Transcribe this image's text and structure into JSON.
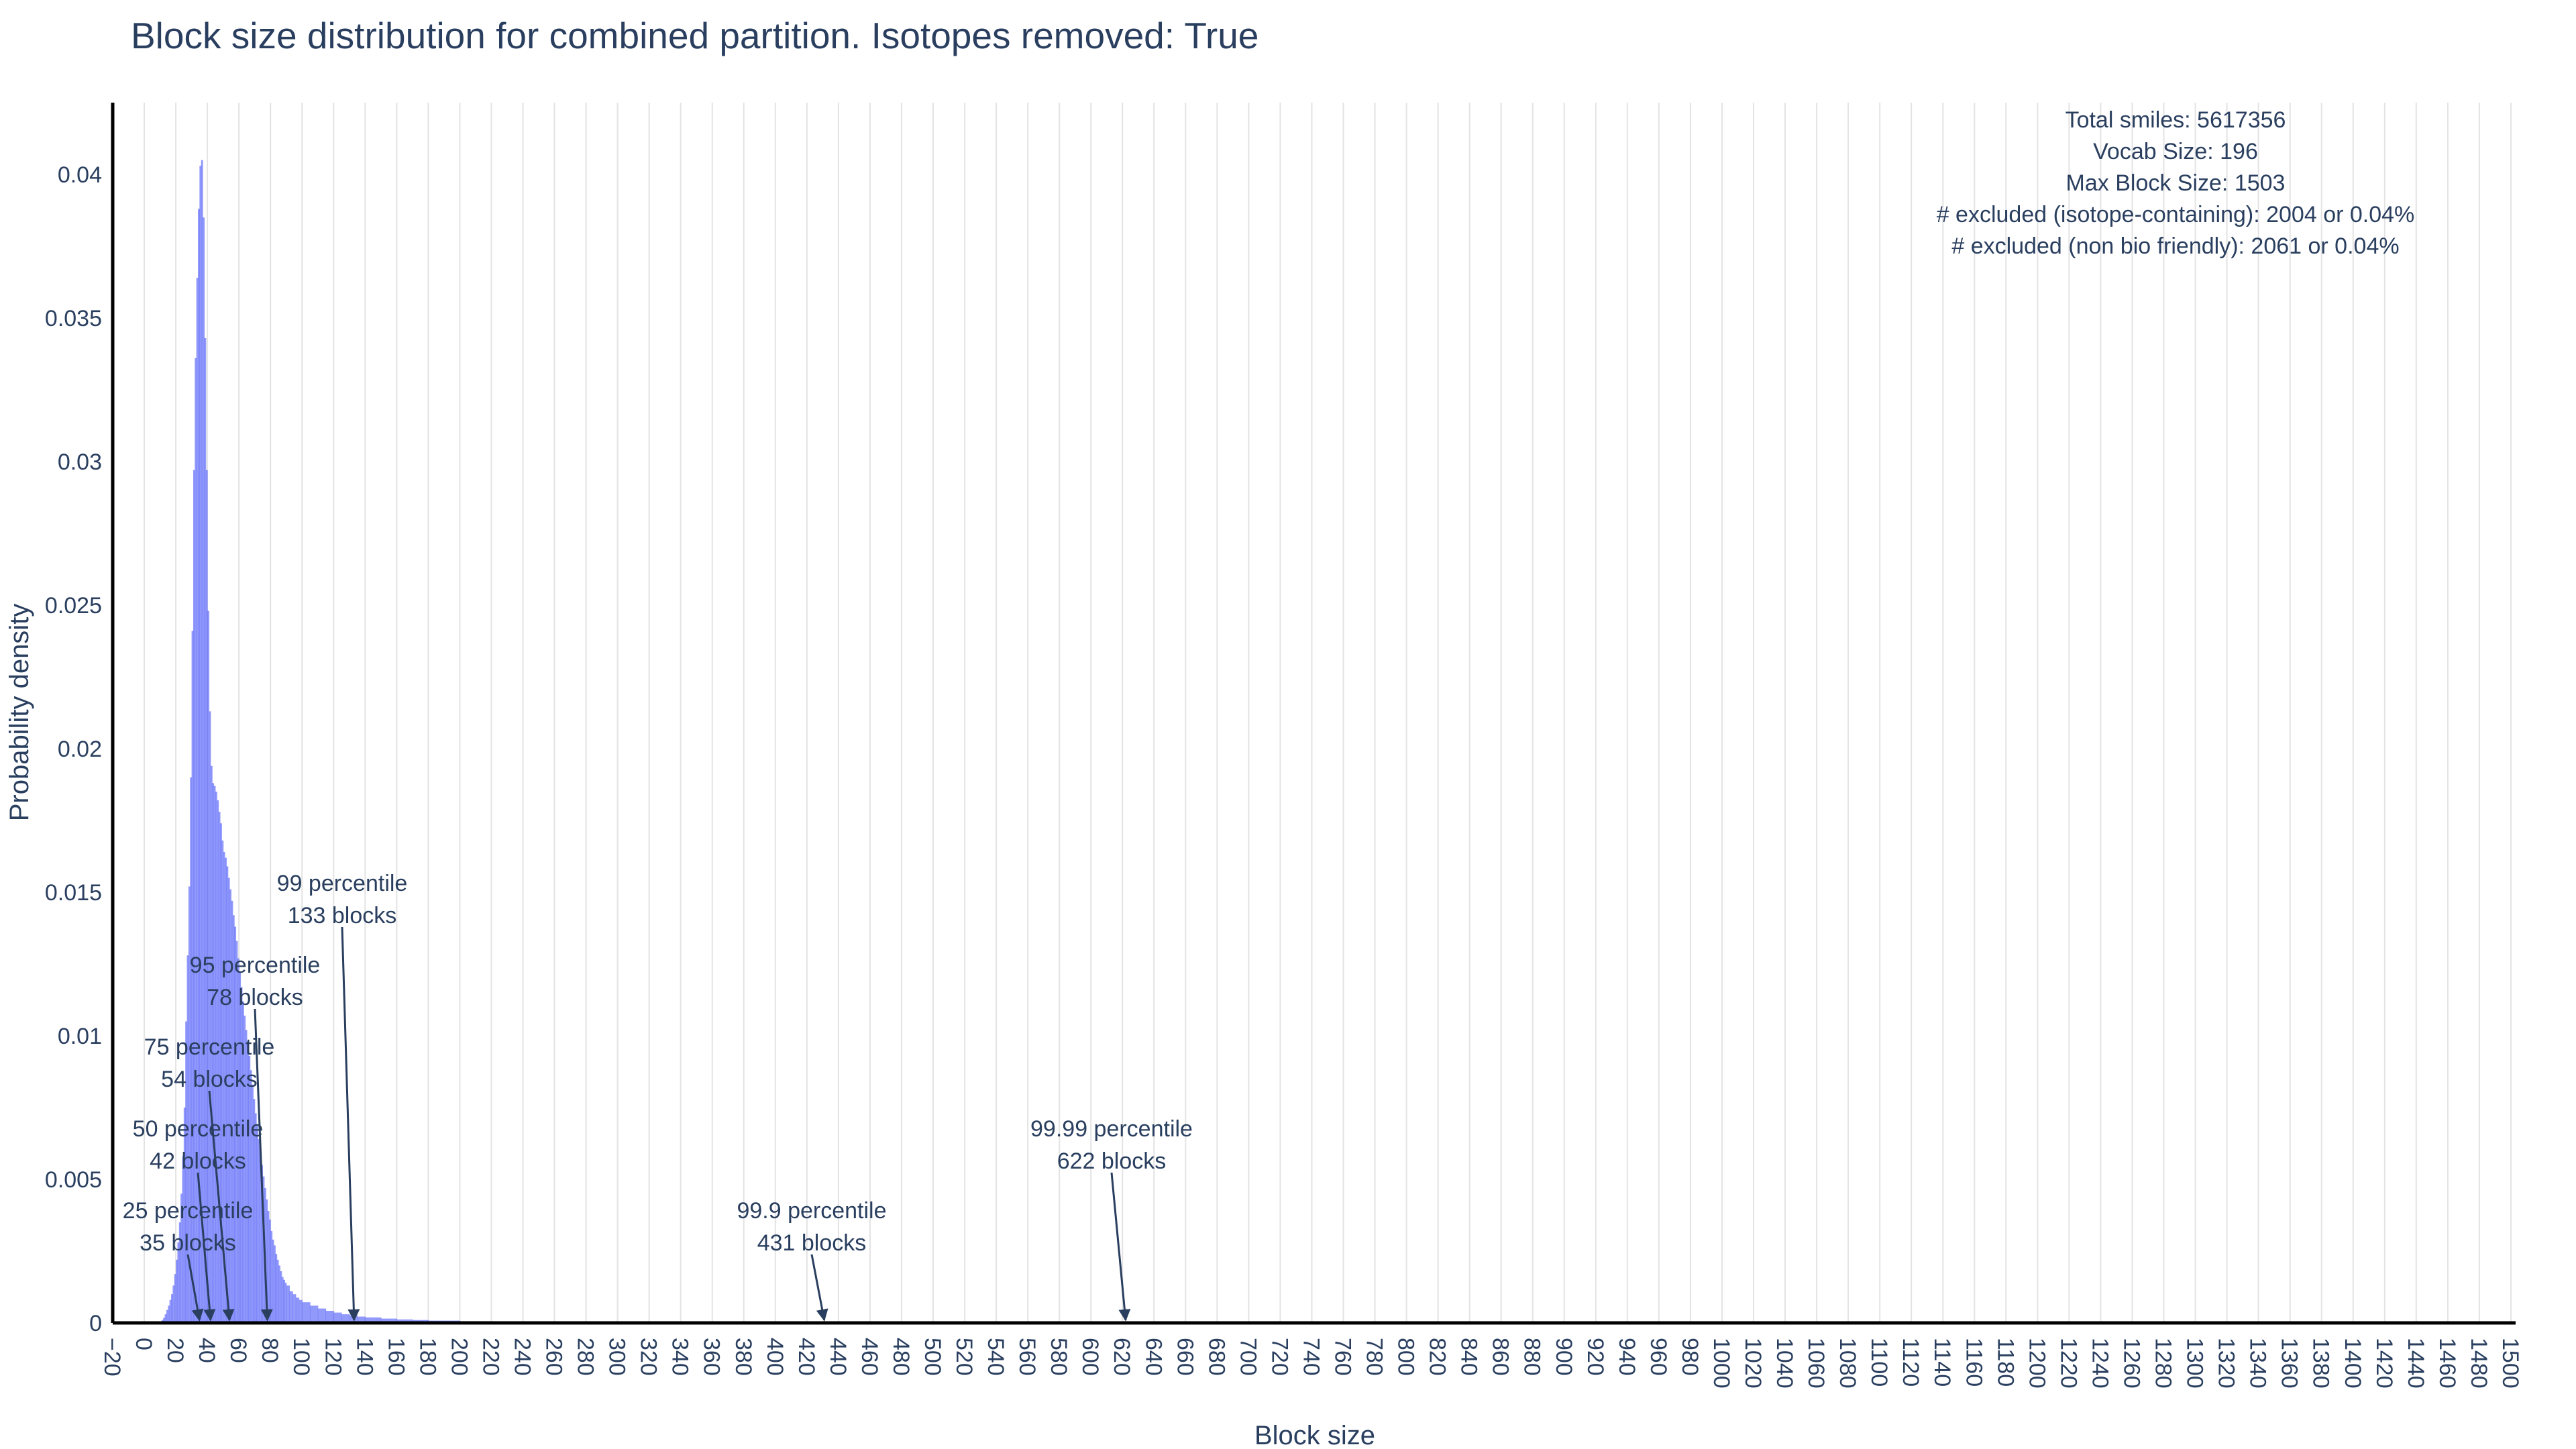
{
  "chart_data": {
    "type": "bar",
    "title": "Block size distribution for combined partition. Isotopes removed: True",
    "xlabel": "Block size",
    "ylabel": "Probability density",
    "xlim": [
      -20,
      1503
    ],
    "ylim": [
      0,
      0.0425
    ],
    "x_tick_step": 20,
    "y_ticks": [
      0,
      0.005,
      0.01,
      0.015,
      0.02,
      0.025,
      0.03,
      0.035,
      0.04
    ],
    "y_tick_labels": [
      "0",
      "0.005",
      "0.01",
      "0.015",
      "0.02",
      "0.025",
      "0.03",
      "0.035",
      "0.04"
    ],
    "grid": "vertical",
    "bar_color": "#636efa",
    "bar_opacity": 0.7,
    "series": [
      {
        "x": [
          10,
          11,
          12,
          13,
          14,
          15,
          16,
          17,
          18,
          19,
          20,
          21,
          22,
          23,
          24,
          25,
          26,
          27,
          28,
          29,
          30,
          31,
          32,
          33,
          34,
          35,
          36,
          37,
          38,
          39,
          40,
          41,
          42,
          43,
          44,
          45,
          46,
          47,
          48,
          49,
          50,
          51,
          52,
          53,
          54,
          55,
          56,
          57,
          58,
          59,
          60,
          61,
          62,
          63,
          64,
          65,
          66,
          67,
          68,
          69,
          70,
          71,
          72,
          73,
          74,
          75,
          76,
          77,
          78,
          79,
          80,
          81,
          82,
          83,
          84,
          85,
          86,
          87,
          88,
          89,
          90,
          92,
          94,
          96,
          98,
          100,
          105,
          110,
          115,
          120,
          125,
          130,
          135,
          140,
          150,
          160,
          170,
          180,
          200,
          220,
          240,
          260,
          280,
          300,
          320,
          340,
          360
        ],
        "values": [
          5e-05,
          0.0001,
          0.00018,
          0.0003,
          0.00045,
          0.0006,
          0.0008,
          0.001,
          0.0013,
          0.0017,
          0.0022,
          0.0028,
          0.0035,
          0.0045,
          0.0058,
          0.0075,
          0.0105,
          0.0128,
          0.0152,
          0.019,
          0.0241,
          0.0297,
          0.0336,
          0.0364,
          0.0388,
          0.0403,
          0.0405,
          0.0385,
          0.0343,
          0.0297,
          0.0248,
          0.0213,
          0.0194,
          0.0188,
          0.0187,
          0.0185,
          0.0182,
          0.0178,
          0.0174,
          0.0168,
          0.0164,
          0.0162,
          0.0159,
          0.0155,
          0.0151,
          0.0147,
          0.0142,
          0.0138,
          0.0133,
          0.0127,
          0.0122,
          0.0117,
          0.0112,
          0.0107,
          0.0102,
          0.0098,
          0.0093,
          0.0088,
          0.0083,
          0.0078,
          0.0073,
          0.0069,
          0.0064,
          0.006,
          0.0055,
          0.0051,
          0.0047,
          0.0043,
          0.0039,
          0.0036,
          0.0032,
          0.0029,
          0.0027,
          0.0024,
          0.0022,
          0.002,
          0.0018,
          0.0016,
          0.0015,
          0.0014,
          0.0013,
          0.0011,
          0.001,
          0.00088,
          0.0008,
          0.00072,
          0.0006,
          0.0005,
          0.00042,
          0.00036,
          0.0003,
          0.00026,
          0.00022,
          0.00019,
          0.00015,
          0.00012,
          0.0001,
          8e-05,
          6e-05,
          5e-05,
          4e-05,
          3e-05,
          2.5e-05,
          2e-05,
          1.5e-05,
          1e-05,
          8e-06
        ]
      }
    ],
    "annotations": [
      {
        "line1": "25 percentile",
        "line2": "35 blocks",
        "x": 35
      },
      {
        "line1": "50 percentile",
        "line2": "42 blocks",
        "x": 42
      },
      {
        "line1": "75 percentile",
        "line2": "54 blocks",
        "x": 54
      },
      {
        "line1": "95 percentile",
        "line2": "78 blocks",
        "x": 78
      },
      {
        "line1": "99 percentile",
        "line2": "133 blocks",
        "x": 133
      },
      {
        "line1": "99.9 percentile",
        "line2": "431 blocks",
        "x": 431
      },
      {
        "line1": "99.99 percentile",
        "line2": "622 blocks",
        "x": 622
      }
    ],
    "info_box": [
      "Total smiles: 5617356",
      "Vocab Size: 196",
      "Max Block Size: 1503",
      "# excluded (isotope-containing): 2004 or 0.04%",
      "# excluded (non bio friendly): 2061 or 0.04%"
    ]
  }
}
